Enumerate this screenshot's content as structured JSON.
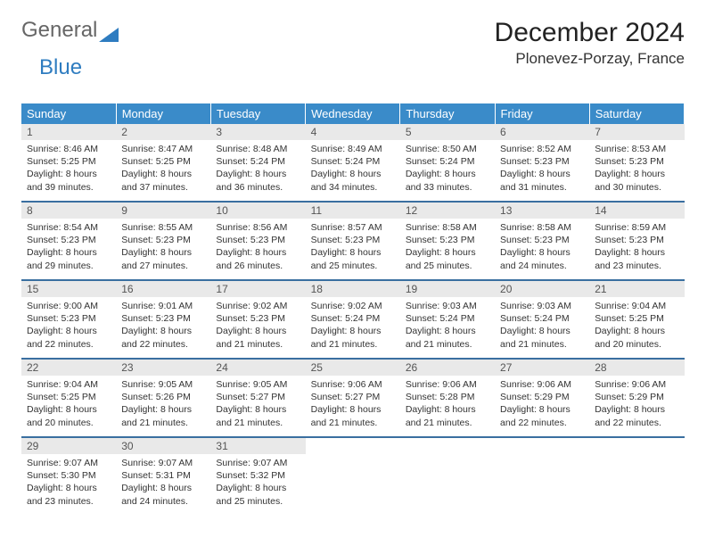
{
  "logo": {
    "text1": "General",
    "text2": "Blue"
  },
  "title": "December 2024",
  "location": "Plonevez-Porzay, France",
  "weekday_header_bg": "#3a8bc9",
  "row_divider_color": "#3a6fa0",
  "daynum_bg": "#e9e9e9",
  "weekdays": [
    "Sunday",
    "Monday",
    "Tuesday",
    "Wednesday",
    "Thursday",
    "Friday",
    "Saturday"
  ],
  "weeks": [
    [
      {
        "n": "1",
        "sr": "8:46 AM",
        "ss": "5:25 PM",
        "dl": "8 hours and 39 minutes."
      },
      {
        "n": "2",
        "sr": "8:47 AM",
        "ss": "5:25 PM",
        "dl": "8 hours and 37 minutes."
      },
      {
        "n": "3",
        "sr": "8:48 AM",
        "ss": "5:24 PM",
        "dl": "8 hours and 36 minutes."
      },
      {
        "n": "4",
        "sr": "8:49 AM",
        "ss": "5:24 PM",
        "dl": "8 hours and 34 minutes."
      },
      {
        "n": "5",
        "sr": "8:50 AM",
        "ss": "5:24 PM",
        "dl": "8 hours and 33 minutes."
      },
      {
        "n": "6",
        "sr": "8:52 AM",
        "ss": "5:23 PM",
        "dl": "8 hours and 31 minutes."
      },
      {
        "n": "7",
        "sr": "8:53 AM",
        "ss": "5:23 PM",
        "dl": "8 hours and 30 minutes."
      }
    ],
    [
      {
        "n": "8",
        "sr": "8:54 AM",
        "ss": "5:23 PM",
        "dl": "8 hours and 29 minutes."
      },
      {
        "n": "9",
        "sr": "8:55 AM",
        "ss": "5:23 PM",
        "dl": "8 hours and 27 minutes."
      },
      {
        "n": "10",
        "sr": "8:56 AM",
        "ss": "5:23 PM",
        "dl": "8 hours and 26 minutes."
      },
      {
        "n": "11",
        "sr": "8:57 AM",
        "ss": "5:23 PM",
        "dl": "8 hours and 25 minutes."
      },
      {
        "n": "12",
        "sr": "8:58 AM",
        "ss": "5:23 PM",
        "dl": "8 hours and 25 minutes."
      },
      {
        "n": "13",
        "sr": "8:58 AM",
        "ss": "5:23 PM",
        "dl": "8 hours and 24 minutes."
      },
      {
        "n": "14",
        "sr": "8:59 AM",
        "ss": "5:23 PM",
        "dl": "8 hours and 23 minutes."
      }
    ],
    [
      {
        "n": "15",
        "sr": "9:00 AM",
        "ss": "5:23 PM",
        "dl": "8 hours and 22 minutes."
      },
      {
        "n": "16",
        "sr": "9:01 AM",
        "ss": "5:23 PM",
        "dl": "8 hours and 22 minutes."
      },
      {
        "n": "17",
        "sr": "9:02 AM",
        "ss": "5:23 PM",
        "dl": "8 hours and 21 minutes."
      },
      {
        "n": "18",
        "sr": "9:02 AM",
        "ss": "5:24 PM",
        "dl": "8 hours and 21 minutes."
      },
      {
        "n": "19",
        "sr": "9:03 AM",
        "ss": "5:24 PM",
        "dl": "8 hours and 21 minutes."
      },
      {
        "n": "20",
        "sr": "9:03 AM",
        "ss": "5:24 PM",
        "dl": "8 hours and 21 minutes."
      },
      {
        "n": "21",
        "sr": "9:04 AM",
        "ss": "5:25 PM",
        "dl": "8 hours and 20 minutes."
      }
    ],
    [
      {
        "n": "22",
        "sr": "9:04 AM",
        "ss": "5:25 PM",
        "dl": "8 hours and 20 minutes."
      },
      {
        "n": "23",
        "sr": "9:05 AM",
        "ss": "5:26 PM",
        "dl": "8 hours and 21 minutes."
      },
      {
        "n": "24",
        "sr": "9:05 AM",
        "ss": "5:27 PM",
        "dl": "8 hours and 21 minutes."
      },
      {
        "n": "25",
        "sr": "9:06 AM",
        "ss": "5:27 PM",
        "dl": "8 hours and 21 minutes."
      },
      {
        "n": "26",
        "sr": "9:06 AM",
        "ss": "5:28 PM",
        "dl": "8 hours and 21 minutes."
      },
      {
        "n": "27",
        "sr": "9:06 AM",
        "ss": "5:29 PM",
        "dl": "8 hours and 22 minutes."
      },
      {
        "n": "28",
        "sr": "9:06 AM",
        "ss": "5:29 PM",
        "dl": "8 hours and 22 minutes."
      }
    ],
    [
      {
        "n": "29",
        "sr": "9:07 AM",
        "ss": "5:30 PM",
        "dl": "8 hours and 23 minutes."
      },
      {
        "n": "30",
        "sr": "9:07 AM",
        "ss": "5:31 PM",
        "dl": "8 hours and 24 minutes."
      },
      {
        "n": "31",
        "sr": "9:07 AM",
        "ss": "5:32 PM",
        "dl": "8 hours and 25 minutes."
      },
      null,
      null,
      null,
      null
    ]
  ],
  "labels": {
    "sunrise": "Sunrise: ",
    "sunset": "Sunset: ",
    "daylight": "Daylight: "
  }
}
